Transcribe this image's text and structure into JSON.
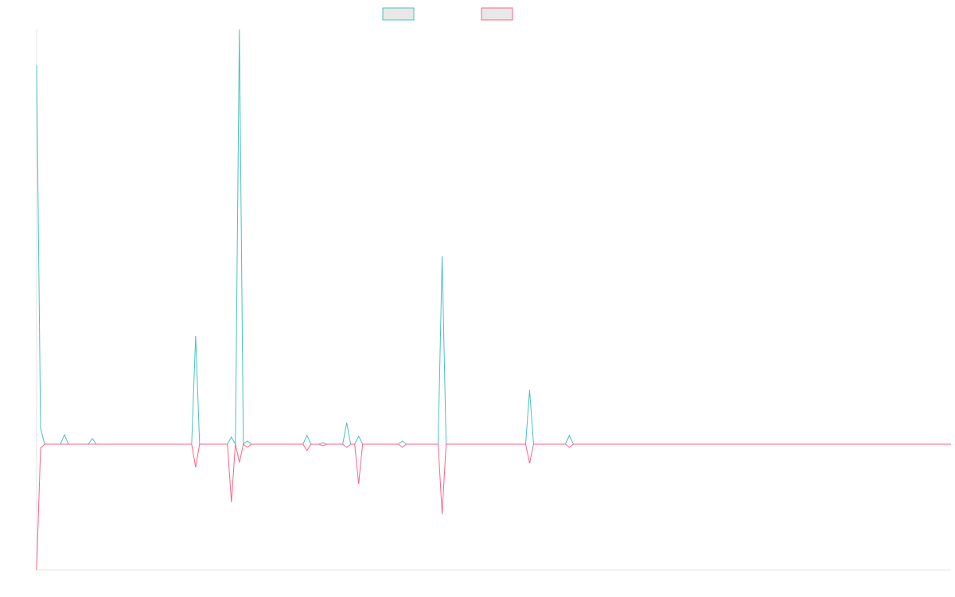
{
  "chart_data": {
    "type": "line",
    "x": [
      0,
      1,
      2,
      6,
      7,
      8,
      13,
      14,
      15,
      39,
      40,
      41,
      48,
      49,
      50,
      51,
      52,
      53,
      54,
      67,
      68,
      69,
      71,
      72,
      73,
      77,
      78,
      79,
      80,
      81,
      82,
      91,
      92,
      93,
      101,
      102,
      103,
      123,
      124,
      125,
      133,
      134,
      135,
      230
    ],
    "xlim": [
      0,
      230
    ],
    "ylim": [
      -158,
      521
    ],
    "series": [
      {
        "color": "#4bc0c0",
        "values": [
          476,
          20,
          0,
          0,
          12,
          0,
          0,
          7,
          0,
          0,
          136,
          0,
          0,
          9,
          0,
          521,
          0,
          4,
          0,
          0,
          11,
          0,
          0,
          2,
          0,
          0,
          27,
          0,
          0,
          10,
          0,
          0,
          4,
          0,
          0,
          236,
          0,
          0,
          68,
          0,
          0,
          11,
          0,
          0
        ]
      },
      {
        "color": "#ff6384",
        "values": [
          -158,
          -5,
          0,
          0,
          0,
          0,
          0,
          0,
          0,
          0,
          -29,
          0,
          0,
          -73,
          0,
          -23,
          0,
          -4,
          0,
          0,
          -8,
          0,
          0,
          -2,
          0,
          0,
          -4,
          0,
          0,
          -50,
          0,
          0,
          -4,
          0,
          0,
          -88,
          0,
          0,
          -24,
          0,
          0,
          -4,
          0,
          0
        ]
      }
    ]
  }
}
